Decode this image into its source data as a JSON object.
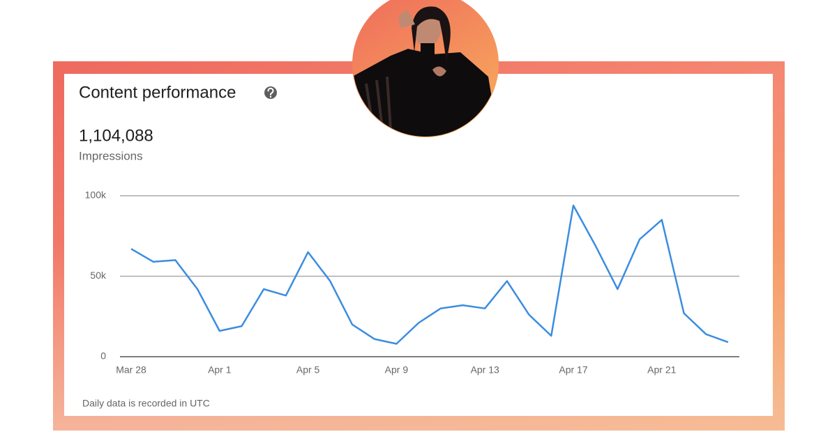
{
  "header": {
    "title": "Content performance",
    "total": "1,104,088",
    "metric": "Impressions"
  },
  "footer": "Daily data is recorded in UTC",
  "chart_data": {
    "type": "line",
    "categories": [
      "Mar 28",
      null,
      null,
      null,
      "Apr 1",
      null,
      null,
      null,
      "Apr 5",
      null,
      null,
      null,
      "Apr 9",
      null,
      null,
      null,
      "Apr 13",
      null,
      null,
      null,
      "Apr 17",
      null,
      null,
      null,
      "Apr 21",
      null,
      null,
      null
    ],
    "series": [
      {
        "name": "Impressions",
        "color": "#3b8de0",
        "values": [
          67000,
          59000,
          60000,
          42000,
          16000,
          19000,
          42000,
          38000,
          65000,
          47000,
          20000,
          11000,
          8000,
          21000,
          30000,
          32000,
          30000,
          47000,
          26000,
          13000,
          94000,
          69000,
          42000,
          73000,
          85000,
          27000,
          14000,
          9000
        ]
      }
    ],
    "ylim": [
      0,
      100000
    ],
    "yticks": [
      0,
      {
        "value": 50000,
        "label": "50k"
      },
      {
        "value": 100000,
        "label": "100k"
      }
    ],
    "grid": true
  }
}
